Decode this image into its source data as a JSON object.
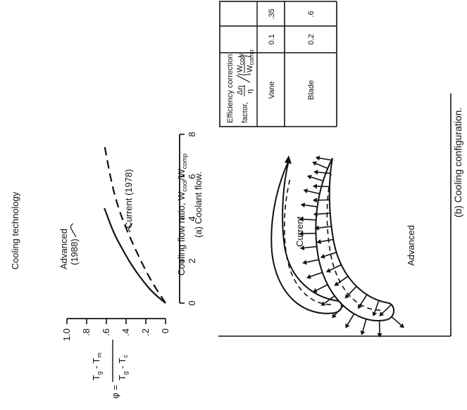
{
  "chart_data": {
    "type": "line",
    "title": "Cooling technology",
    "xlabel": "Cooling flow ratio, W_cool/W_comp",
    "ylabel": "φ = (T_g − T_m)/(T_g − T_c)",
    "caption": "(a) Coolant flow.",
    "xlim": [
      0,
      8
    ],
    "ylim": [
      0,
      1.0
    ],
    "x_ticks": [
      "0",
      "2",
      "4",
      "6",
      "8"
    ],
    "y_ticks": [
      "0",
      ".2",
      ".4",
      ".6",
      ".8",
      "1.0"
    ],
    "series": [
      {
        "name": "Advanced (1988)",
        "style": "solid",
        "x": [
          0,
          0.5,
          1,
          1.5,
          2,
          2.5,
          3,
          3.5,
          4,
          4.5
        ],
        "y": [
          0,
          0.13,
          0.22,
          0.3,
          0.37,
          0.43,
          0.49,
          0.54,
          0.58,
          0.62
        ]
      },
      {
        "name": "Current (1978)",
        "style": "dashed",
        "x": [
          0,
          1,
          2,
          3,
          4,
          5,
          6,
          7,
          7.5
        ],
        "y": [
          0,
          0.14,
          0.25,
          0.35,
          0.44,
          0.51,
          0.56,
          0.6,
          0.62
        ]
      }
    ]
  },
  "axis_label_parts": {
    "y_phi": "φ =",
    "y_num": "T",
    "y_num_sub1": "g",
    "y_num_sub2": "m",
    "y_den": "T",
    "y_den_sub1": "g",
    "y_den_sub2": "c",
    "minus": " - ",
    "x_text": "Cooling flow ratio, W",
    "x_sub1": "cool",
    "x_slash": "/W",
    "x_sub2": "comp"
  },
  "curve_labels": {
    "advanced_line1": "Advanced",
    "advanced_line2": "(1988)",
    "current": "Current (1978)"
  },
  "panel_b": {
    "caption": "(b) Cooling configuration.",
    "label_current": "Current",
    "label_advanced": "Advanced",
    "table": {
      "header_line1": "Efficiency correction",
      "header_prefix": "factor,",
      "header_eta": "Δη",
      "header_eta_den": "η",
      "header_num_w": "W",
      "header_num_sub": "cool",
      "header_den_w": "W",
      "header_den_sub": "comp",
      "columns": [
        "Vane",
        "Blade"
      ],
      "rows": [
        [
          "0.1",
          "0.2"
        ],
        [
          ".35",
          ".6"
        ]
      ]
    }
  }
}
